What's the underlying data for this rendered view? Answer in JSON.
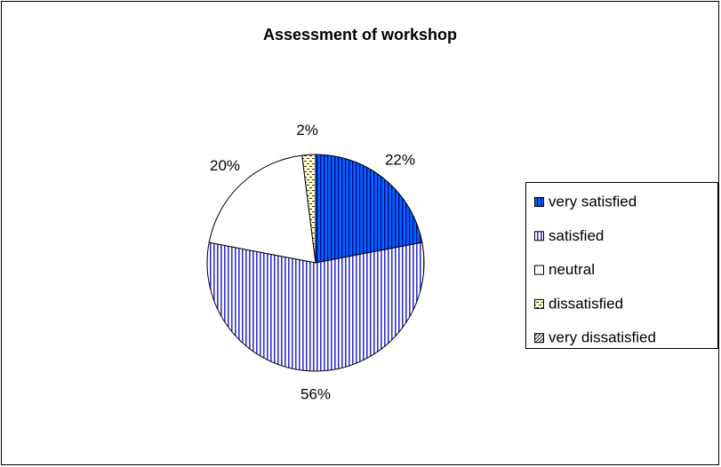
{
  "chart_data": {
    "type": "pie",
    "title": "Assessment of workshop",
    "categories": [
      "very satisfied",
      "satisfied",
      "neutral",
      "dissatisfied",
      "very dissatisfied"
    ],
    "values": [
      22,
      56,
      20,
      2,
      0
    ],
    "value_labels": [
      "22%",
      "56%",
      "20%",
      "2%",
      null
    ],
    "colors": [
      "#0066ff",
      "#3333cc",
      "#ffffff",
      "#ffffcc",
      "#333333"
    ],
    "legend": "right"
  }
}
